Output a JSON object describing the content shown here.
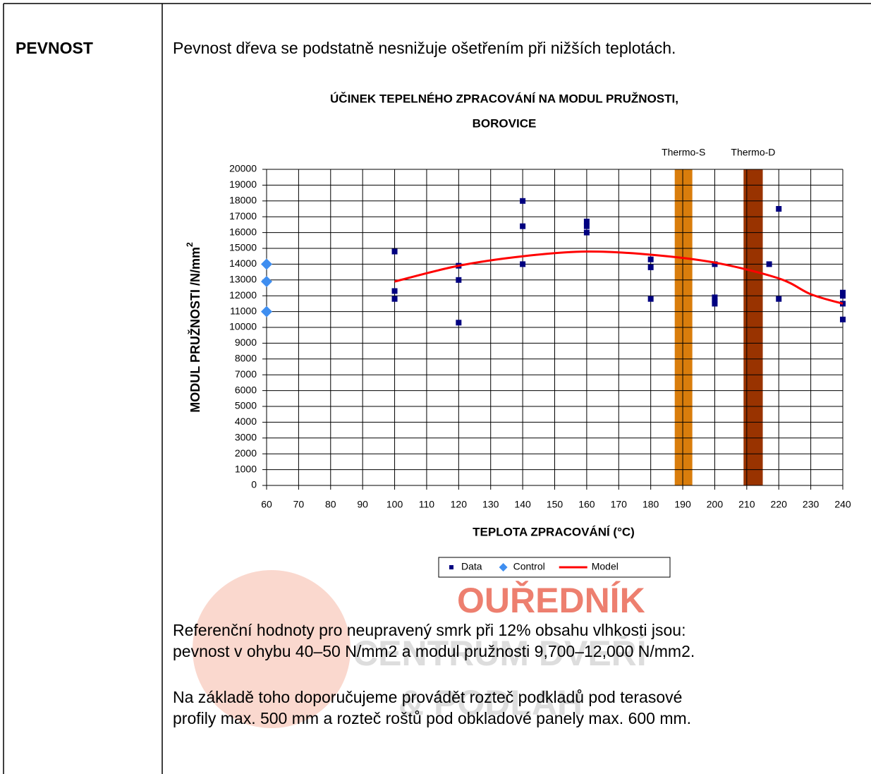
{
  "table": {
    "label": "PEVNOST",
    "intro": "Pevnost dřeva se podstatně nesnižuje ošetřením při nižších teplotách."
  },
  "chart_data": {
    "type": "scatter",
    "title": [
      "ÚČINEK TEPELNÉHO ZPRACOVÁNÍ NA MODUL PRUŽNOSTI,",
      "BOROVICE"
    ],
    "x_label": "TEPLOTA ZPRACOVÁNÍ (°C)",
    "y_label": "MODUL PRUŽNOSTI /N/mm",
    "y_label_sup": "2",
    "xlim": [
      60,
      240
    ],
    "xticks": [
      60,
      70,
      80,
      90,
      100,
      110,
      120,
      130,
      140,
      150,
      160,
      170,
      180,
      190,
      200,
      210,
      220,
      230,
      240
    ],
    "ylim": [
      0,
      20000
    ],
    "yticks": [
      0,
      1000,
      2000,
      3000,
      4000,
      5000,
      6000,
      7000,
      8000,
      9000,
      10000,
      11000,
      12000,
      13000,
      14000,
      15000,
      16000,
      17000,
      18000,
      19000,
      20000
    ],
    "grid": true,
    "bands": [
      {
        "label": "Thermo-S",
        "from": 187.5,
        "to": 193,
        "color": "#d97d0c"
      },
      {
        "label": "Thermo-D",
        "from": 209,
        "to": 215,
        "color": "#993300"
      }
    ],
    "series": [
      {
        "name": "Data",
        "marker": "square",
        "color": "#000080",
        "x": [
          100,
          100,
          100,
          120,
          120,
          120,
          140,
          140,
          140,
          160,
          160,
          160,
          180,
          180,
          180,
          200,
          200,
          200,
          200,
          217,
          220,
          220,
          240,
          240,
          240,
          240
        ],
        "values": [
          14800,
          12300,
          11800,
          13900,
          13000,
          10300,
          18000,
          16400,
          14000,
          16700,
          16400,
          16000,
          14300,
          13800,
          11800,
          14000,
          11900,
          11700,
          11500,
          14000,
          17500,
          11800,
          12200,
          12000,
          11500,
          10500
        ]
      },
      {
        "name": "Control",
        "marker": "diamond",
        "color": "#3f8ef0",
        "x": [
          60,
          60,
          60
        ],
        "values": [
          14000,
          12900,
          11000
        ]
      },
      {
        "name": "Model",
        "marker": "line",
        "color": "#ff0000",
        "x": [
          100,
          120,
          140,
          160,
          180,
          200,
          220,
          230,
          240
        ],
        "values": [
          12900,
          13900,
          14500,
          14800,
          14600,
          14100,
          13100,
          12100,
          11500
        ]
      }
    ]
  },
  "paragraphs": [
    [
      "Referenční hodnoty pro neupravený smrk při 12% obsahu vlhkosti jsou:",
      "pevnost v ohybu 40–50 N/mm2 a modul pružnosti 9,700–12,000 N/mm2."
    ],
    [
      "Na základě toho doporučujeme provádět rozteč podkladů pod terasové",
      "profily max. 500 mm a rozteč roštů pod obkladové panely max. 600 mm."
    ]
  ],
  "watermark": [
    "OUŘEDNÍK",
    "CENTRUM DVEŘÍ",
    "& PODLAH"
  ]
}
